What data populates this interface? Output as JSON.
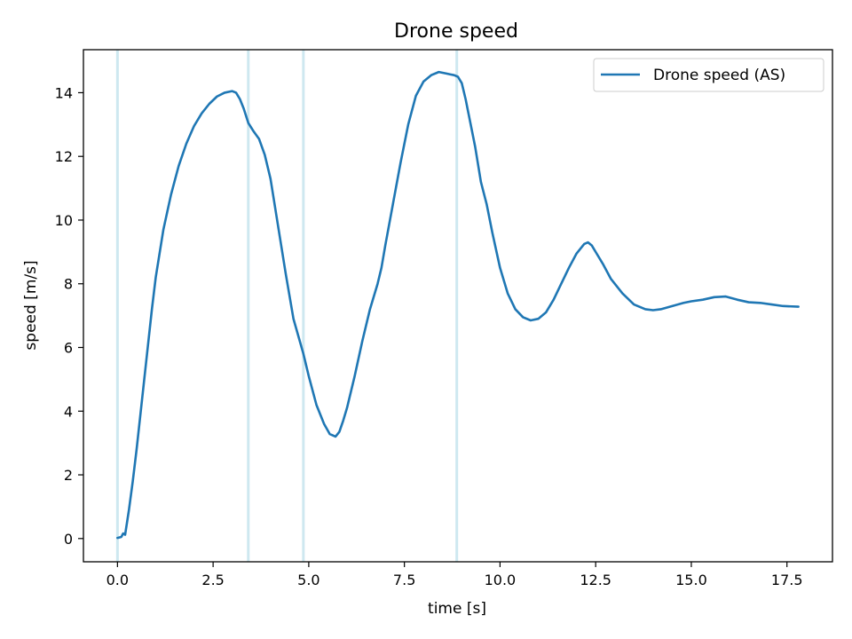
{
  "chart_data": {
    "type": "line",
    "title": "Drone speed",
    "xlabel": "time [s]",
    "ylabel": "speed [m/s]",
    "xlim": [
      -0.89,
      18.69
    ],
    "ylim": [
      -0.73,
      15.35
    ],
    "xticks": [
      0.0,
      2.5,
      5.0,
      7.5,
      10.0,
      12.5,
      15.0,
      17.5
    ],
    "xtick_labels": [
      "0.0",
      "2.5",
      "5.0",
      "7.5",
      "10.0",
      "12.5",
      "15.0",
      "17.5"
    ],
    "yticks": [
      0,
      2,
      4,
      6,
      8,
      10,
      12,
      14
    ],
    "ytick_labels": [
      "0",
      "2",
      "4",
      "6",
      "8",
      "10",
      "12",
      "14"
    ],
    "grid": false,
    "legend": "top-right",
    "vertical_lines": [
      0.0,
      3.42,
      4.86,
      8.87
    ],
    "vertical_line_color": "#add8e6",
    "series": [
      {
        "name": "Drone speed (AS)",
        "color": "#1f77b4",
        "x": [
          0.0,
          0.1,
          0.15,
          0.2,
          0.3,
          0.4,
          0.5,
          0.6,
          0.7,
          0.8,
          0.9,
          1.0,
          1.2,
          1.4,
          1.6,
          1.8,
          2.0,
          2.2,
          2.4,
          2.6,
          2.8,
          3.0,
          3.1,
          3.2,
          3.3,
          3.42,
          3.55,
          3.7,
          3.85,
          4.0,
          4.2,
          4.4,
          4.6,
          4.86,
          5.0,
          5.2,
          5.4,
          5.55,
          5.7,
          5.8,
          5.9,
          6.0,
          6.2,
          6.4,
          6.6,
          6.8,
          6.9,
          7.0,
          7.2,
          7.4,
          7.6,
          7.8,
          8.0,
          8.2,
          8.4,
          8.6,
          8.8,
          8.9,
          9.0,
          9.1,
          9.2,
          9.35,
          9.5,
          9.65,
          9.8,
          10.0,
          10.2,
          10.4,
          10.6,
          10.8,
          11.0,
          11.2,
          11.4,
          11.6,
          11.8,
          12.0,
          12.2,
          12.3,
          12.4,
          12.5,
          12.7,
          12.9,
          13.2,
          13.5,
          13.8,
          14.0,
          14.2,
          14.5,
          14.8,
          15.0,
          15.3,
          15.6,
          15.9,
          16.2,
          16.5,
          16.8,
          17.1,
          17.4,
          17.8
        ],
        "y": [
          0.02,
          0.05,
          0.16,
          0.12,
          0.9,
          1.8,
          2.8,
          3.9,
          5.0,
          6.1,
          7.2,
          8.2,
          9.7,
          10.8,
          11.7,
          12.4,
          12.95,
          13.35,
          13.65,
          13.88,
          14.0,
          14.05,
          14.0,
          13.8,
          13.5,
          13.05,
          12.8,
          12.55,
          12.05,
          11.3,
          9.8,
          8.3,
          6.9,
          5.8,
          5.1,
          4.2,
          3.6,
          3.28,
          3.2,
          3.35,
          3.7,
          4.1,
          5.1,
          6.2,
          7.2,
          8.0,
          8.5,
          9.2,
          10.5,
          11.8,
          13.0,
          13.9,
          14.35,
          14.55,
          14.65,
          14.6,
          14.55,
          14.5,
          14.3,
          13.8,
          13.2,
          12.3,
          11.2,
          10.5,
          9.6,
          8.5,
          7.7,
          7.2,
          6.95,
          6.85,
          6.9,
          7.1,
          7.5,
          8.0,
          8.5,
          8.95,
          9.25,
          9.3,
          9.2,
          9.0,
          8.6,
          8.15,
          7.7,
          7.35,
          7.2,
          7.17,
          7.2,
          7.3,
          7.4,
          7.45,
          7.5,
          7.58,
          7.6,
          7.5,
          7.42,
          7.4,
          7.35,
          7.3,
          7.28
        ]
      }
    ]
  }
}
